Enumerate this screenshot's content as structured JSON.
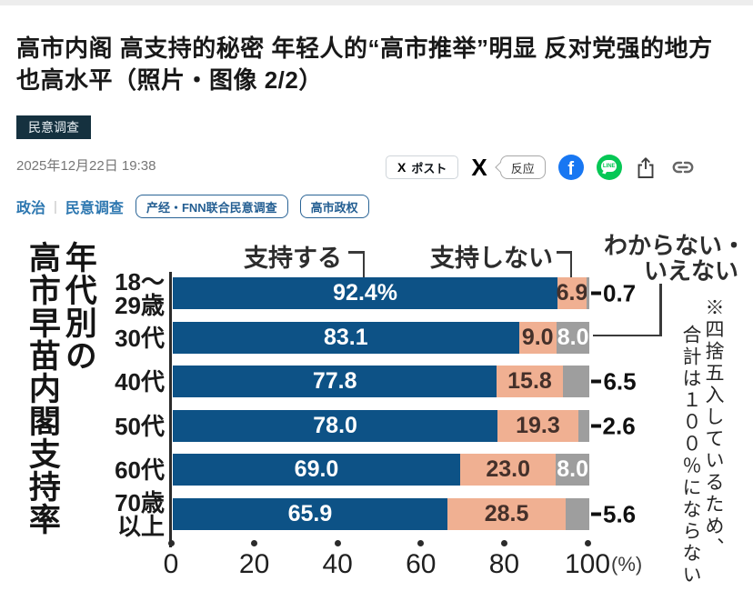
{
  "header": {
    "title": "高市内阁 高支持的秘密 年轻人的“高市推举”明显 反对党强的地方也高水平（照片・图像 2/2）",
    "badge": "民意调查",
    "date": "2025年12月22日 19:38"
  },
  "share": {
    "post_label": "ポスト",
    "reaction_label": "反应"
  },
  "icons": {
    "x_glyph": "X",
    "facebook_glyph": "f",
    "line_glyph": "LINE"
  },
  "breadcrumb": {
    "links": [
      "政治",
      "民意调查"
    ],
    "separator": "|"
  },
  "tags": [
    "产经・FNN联合民意调查",
    "高市政权"
  ],
  "chart_data": {
    "type": "bar",
    "orientation": "horizontal",
    "stacked": true,
    "title": "年代別の高市早苗内閣支持率",
    "title_lines": [
      "年代別の",
      "高市早苗内閣支持率"
    ],
    "categories": [
      "18～29歳",
      "30代",
      "40代",
      "50代",
      "60代",
      "70歳以上"
    ],
    "series": [
      {
        "name": "支持する",
        "color": "#0d5286",
        "values": [
          92.4,
          83.1,
          77.8,
          78.0,
          69.0,
          65.9
        ]
      },
      {
        "name": "支持しない",
        "color": "#f0b092",
        "values": [
          6.9,
          9.0,
          15.8,
          19.3,
          23.0,
          28.5
        ]
      },
      {
        "name": "わからない・いえない",
        "name_lines": [
          "わからない・",
          "いえない"
        ],
        "color": "#9e9e9e",
        "values": [
          0.7,
          8.0,
          6.5,
          2.6,
          8.0,
          5.6
        ]
      }
    ],
    "rows": [
      {
        "category_lines": [
          "18～",
          "29歳"
        ],
        "labels": [
          "92.4%",
          "6.9",
          "0.7"
        ],
        "third_label_pos": "outside"
      },
      {
        "category_lines": [
          "30代"
        ],
        "labels": [
          "83.1",
          "9.0",
          "8.0"
        ],
        "third_label_pos": "inside"
      },
      {
        "category_lines": [
          "40代"
        ],
        "labels": [
          "77.8",
          "15.8",
          "6.5"
        ],
        "third_label_pos": "outside"
      },
      {
        "category_lines": [
          "50代"
        ],
        "labels": [
          "78.0",
          "19.3",
          "2.6"
        ],
        "third_label_pos": "outside"
      },
      {
        "category_lines": [
          "60代"
        ],
        "labels": [
          "69.0",
          "23.0",
          "8.0"
        ],
        "third_label_pos": "inside"
      },
      {
        "category_lines": [
          "70歳",
          "以上"
        ],
        "labels": [
          "65.9",
          "28.5",
          "5.6"
        ],
        "third_label_pos": "outside"
      }
    ],
    "x_ticks": [
      "0",
      "20",
      "40",
      "60",
      "80",
      "100"
    ],
    "x_unit": "(%)",
    "xlim": [
      0,
      100
    ],
    "note_lines": [
      "※四捨五入しているため、",
      "合計は１００％にならない"
    ],
    "legend_position": "top",
    "grid": false
  }
}
